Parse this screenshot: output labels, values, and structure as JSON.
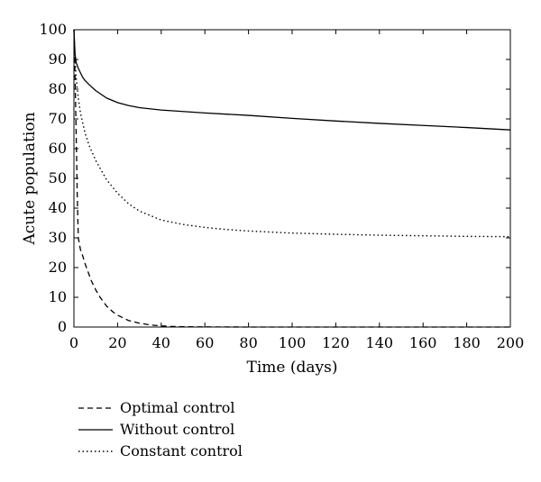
{
  "chart_data": {
    "type": "line",
    "xlabel": "Time (days)",
    "ylabel": "Acute population",
    "xlim": [
      0,
      200
    ],
    "ylim": [
      0,
      100
    ],
    "xticks": [
      0,
      20,
      40,
      60,
      80,
      100,
      120,
      140,
      160,
      180,
      200
    ],
    "yticks": [
      0,
      10,
      20,
      30,
      40,
      50,
      60,
      70,
      80,
      90,
      100
    ],
    "grid": false,
    "legend_position": "bottom-left, below plot",
    "series": [
      {
        "name": "Optimal control",
        "line_style": "dashed",
        "color": "#000000",
        "x": [
          0,
          0.5,
          1,
          1.5,
          2,
          3,
          4,
          5,
          6,
          8,
          10,
          12,
          15,
          18,
          20,
          25,
          30,
          35,
          40,
          45,
          50,
          60,
          80,
          100,
          120,
          140,
          160,
          180,
          200
        ],
        "y": [
          100,
          85,
          66,
          45,
          30,
          26,
          24,
          21.5,
          19.5,
          15.5,
          12.5,
          10,
          7,
          5,
          4,
          2.2,
          1.3,
          0.7,
          0.4,
          0.2,
          0.1,
          0.05,
          0,
          0,
          0,
          0,
          0,
          0,
          0
        ]
      },
      {
        "name": "Without control",
        "line_style": "solid",
        "color": "#000000",
        "x": [
          0,
          0.5,
          1,
          2,
          3,
          4,
          5,
          7,
          10,
          15,
          20,
          25,
          30,
          40,
          60,
          80,
          100,
          120,
          140,
          160,
          180,
          200
        ],
        "y": [
          100,
          92,
          89,
          87,
          85.5,
          84,
          83,
          81.5,
          79.5,
          77,
          75.5,
          74.5,
          73.8,
          73,
          72,
          71.2,
          70.2,
          69.3,
          68.5,
          67.8,
          67.1,
          66.3
        ]
      },
      {
        "name": "Constant control",
        "line_style": "dotted",
        "color": "#000000",
        "x": [
          0,
          0.5,
          1,
          2,
          3,
          5,
          7,
          10,
          15,
          20,
          25,
          30,
          40,
          50,
          60,
          70,
          80,
          100,
          120,
          140,
          160,
          180,
          200
        ],
        "y": [
          100,
          90,
          84,
          77,
          72,
          65.5,
          61,
          56,
          49.5,
          45,
          41.5,
          39,
          36,
          34.5,
          33.5,
          32.8,
          32.3,
          31.6,
          31.2,
          30.9,
          30.7,
          30.5,
          30.4
        ]
      }
    ]
  }
}
